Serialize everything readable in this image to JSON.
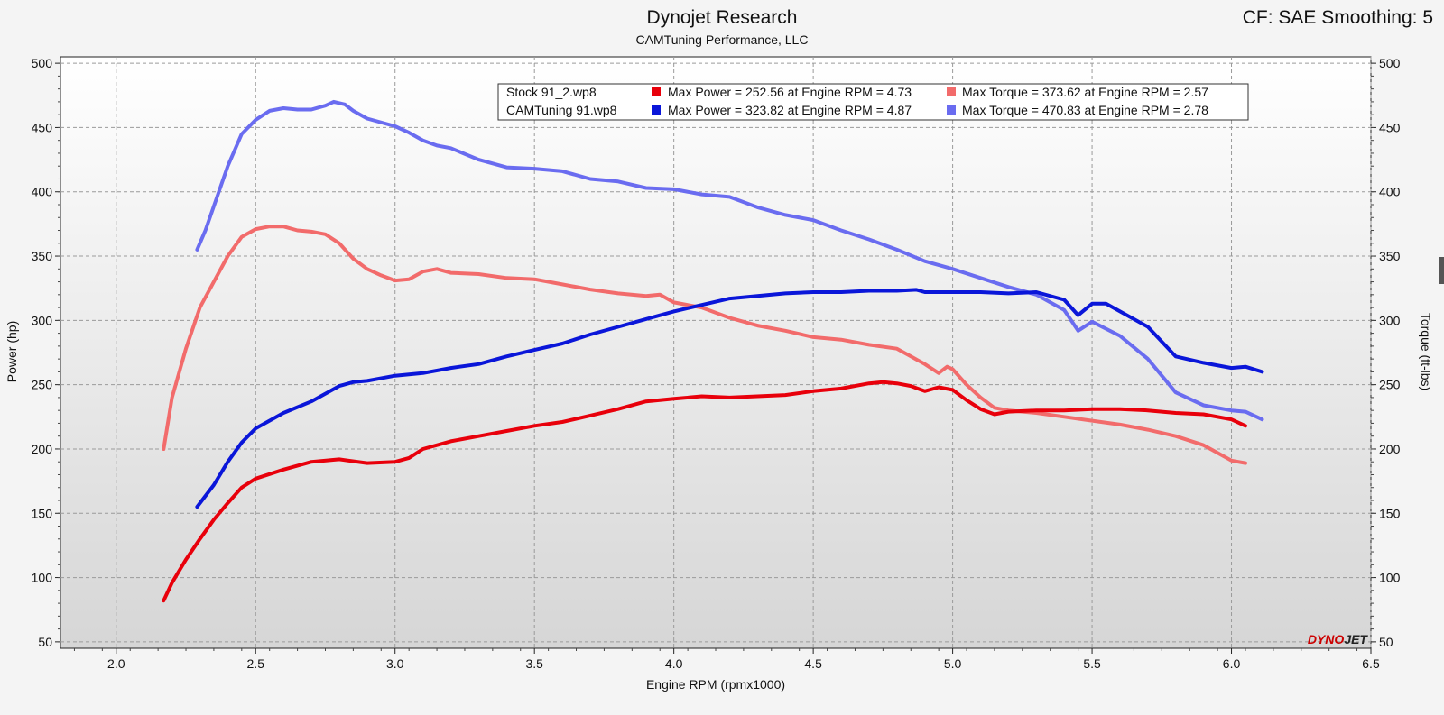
{
  "header": {
    "title": "Dynojet Research",
    "subtitle": "CAMTuning Performance, LLC",
    "corner_info": "CF: SAE Smoothing: 5"
  },
  "logo": {
    "text_left": "DYNO",
    "text_right": "JET"
  },
  "legend": {
    "runs": [
      {
        "file": "Stock 91_2.wp8",
        "power": "Max Power = 252.56 at Engine RPM = 4.73",
        "torque": "Max Torque = 373.62 at Engine RPM = 2.57",
        "power_color": "#e8000b",
        "torque_color": "#f26b6b"
      },
      {
        "file": "CAMTuning 91.wp8",
        "power": "Max Power = 323.82 at Engine RPM = 4.87",
        "torque": "Max Torque = 470.83 at Engine RPM = 2.78",
        "power_color": "#0a16d9",
        "torque_color": "#6a6cf0"
      }
    ]
  },
  "chart_data": {
    "type": "line",
    "title": "Dynojet Research",
    "subtitle": "CAMTuning Performance, LLC",
    "xlabel": "Engine RPM (rpmx1000)",
    "ylabel": "Power (hp)",
    "y2label": "Torque (ft-lbs)",
    "xlim": [
      1.8,
      6.5
    ],
    "ylim": [
      45,
      505
    ],
    "y2lim": [
      45,
      505
    ],
    "xticks": [
      "2.0",
      "2.5",
      "3.0",
      "3.5",
      "4.0",
      "4.5",
      "5.0",
      "5.5",
      "6.0",
      "6.5"
    ],
    "yticks": [
      "50",
      "100",
      "150",
      "200",
      "250",
      "300",
      "350",
      "400",
      "450",
      "500"
    ],
    "grid": true,
    "legend_position": "top-center",
    "series": [
      {
        "name": "Stock 91_2.wp8 Torque",
        "color": "#f26b6b",
        "points": [
          [
            2.17,
            200
          ],
          [
            2.2,
            240
          ],
          [
            2.25,
            278
          ],
          [
            2.3,
            310
          ],
          [
            2.35,
            330
          ],
          [
            2.4,
            350
          ],
          [
            2.45,
            365
          ],
          [
            2.5,
            371
          ],
          [
            2.55,
            373
          ],
          [
            2.6,
            373
          ],
          [
            2.65,
            370
          ],
          [
            2.7,
            369
          ],
          [
            2.75,
            367
          ],
          [
            2.8,
            360
          ],
          [
            2.85,
            348
          ],
          [
            2.9,
            340
          ],
          [
            2.95,
            335
          ],
          [
            3.0,
            331
          ],
          [
            3.05,
            332
          ],
          [
            3.1,
            338
          ],
          [
            3.15,
            340
          ],
          [
            3.2,
            337
          ],
          [
            3.3,
            336
          ],
          [
            3.4,
            333
          ],
          [
            3.5,
            332
          ],
          [
            3.6,
            328
          ],
          [
            3.7,
            324
          ],
          [
            3.8,
            321
          ],
          [
            3.9,
            319
          ],
          [
            3.95,
            320
          ],
          [
            4.0,
            314
          ],
          [
            4.1,
            310
          ],
          [
            4.2,
            302
          ],
          [
            4.3,
            296
          ],
          [
            4.4,
            292
          ],
          [
            4.5,
            287
          ],
          [
            4.6,
            285
          ],
          [
            4.7,
            281
          ],
          [
            4.8,
            278
          ],
          [
            4.85,
            272
          ],
          [
            4.9,
            266
          ],
          [
            4.95,
            259
          ],
          [
            4.98,
            264
          ],
          [
            5.0,
            262
          ],
          [
            5.05,
            250
          ],
          [
            5.1,
            240
          ],
          [
            5.15,
            232
          ],
          [
            5.2,
            230
          ],
          [
            5.3,
            228
          ],
          [
            5.4,
            225
          ],
          [
            5.5,
            222
          ],
          [
            5.6,
            219
          ],
          [
            5.7,
            215
          ],
          [
            5.8,
            210
          ],
          [
            5.9,
            203
          ],
          [
            5.95,
            197
          ],
          [
            6.0,
            191
          ],
          [
            6.05,
            189
          ]
        ]
      },
      {
        "name": "CAMTuning 91.wp8 Torque",
        "color": "#6a6cf0",
        "points": [
          [
            2.29,
            355
          ],
          [
            2.32,
            370
          ],
          [
            2.36,
            395
          ],
          [
            2.4,
            420
          ],
          [
            2.45,
            445
          ],
          [
            2.5,
            456
          ],
          [
            2.55,
            463
          ],
          [
            2.6,
            465
          ],
          [
            2.65,
            464
          ],
          [
            2.7,
            464
          ],
          [
            2.75,
            467
          ],
          [
            2.78,
            470
          ],
          [
            2.82,
            468
          ],
          [
            2.85,
            463
          ],
          [
            2.9,
            457
          ],
          [
            3.0,
            451
          ],
          [
            3.05,
            446
          ],
          [
            3.1,
            440
          ],
          [
            3.15,
            436
          ],
          [
            3.2,
            434
          ],
          [
            3.3,
            425
          ],
          [
            3.4,
            419
          ],
          [
            3.5,
            418
          ],
          [
            3.6,
            416
          ],
          [
            3.7,
            410
          ],
          [
            3.8,
            408
          ],
          [
            3.9,
            403
          ],
          [
            4.0,
            402
          ],
          [
            4.1,
            398
          ],
          [
            4.2,
            396
          ],
          [
            4.3,
            388
          ],
          [
            4.4,
            382
          ],
          [
            4.5,
            378
          ],
          [
            4.6,
            370
          ],
          [
            4.7,
            363
          ],
          [
            4.8,
            355
          ],
          [
            4.9,
            346
          ],
          [
            5.0,
            340
          ],
          [
            5.1,
            333
          ],
          [
            5.2,
            326
          ],
          [
            5.3,
            320
          ],
          [
            5.4,
            308
          ],
          [
            5.45,
            292
          ],
          [
            5.5,
            299
          ],
          [
            5.6,
            288
          ],
          [
            5.7,
            270
          ],
          [
            5.8,
            244
          ],
          [
            5.9,
            234
          ],
          [
            6.0,
            230
          ],
          [
            6.05,
            229
          ],
          [
            6.11,
            223
          ]
        ]
      },
      {
        "name": "Stock 91_2.wp8 Power",
        "color": "#e8000b",
        "points": [
          [
            2.17,
            82
          ],
          [
            2.2,
            96
          ],
          [
            2.25,
            114
          ],
          [
            2.3,
            130
          ],
          [
            2.35,
            145
          ],
          [
            2.4,
            158
          ],
          [
            2.45,
            170
          ],
          [
            2.5,
            177
          ],
          [
            2.6,
            184
          ],
          [
            2.7,
            190
          ],
          [
            2.8,
            192
          ],
          [
            2.9,
            189
          ],
          [
            3.0,
            190
          ],
          [
            3.05,
            193
          ],
          [
            3.1,
            200
          ],
          [
            3.2,
            206
          ],
          [
            3.3,
            210
          ],
          [
            3.4,
            214
          ],
          [
            3.5,
            218
          ],
          [
            3.6,
            221
          ],
          [
            3.7,
            226
          ],
          [
            3.8,
            231
          ],
          [
            3.9,
            237
          ],
          [
            4.0,
            239
          ],
          [
            4.1,
            241
          ],
          [
            4.2,
            240
          ],
          [
            4.3,
            241
          ],
          [
            4.4,
            242
          ],
          [
            4.5,
            245
          ],
          [
            4.6,
            247
          ],
          [
            4.7,
            251
          ],
          [
            4.75,
            252
          ],
          [
            4.8,
            251
          ],
          [
            4.85,
            249
          ],
          [
            4.9,
            245
          ],
          [
            4.95,
            248
          ],
          [
            5.0,
            246
          ],
          [
            5.05,
            238
          ],
          [
            5.1,
            231
          ],
          [
            5.15,
            227
          ],
          [
            5.2,
            229
          ],
          [
            5.3,
            230
          ],
          [
            5.4,
            230
          ],
          [
            5.5,
            231
          ],
          [
            5.6,
            231
          ],
          [
            5.7,
            230
          ],
          [
            5.8,
            228
          ],
          [
            5.9,
            227
          ],
          [
            6.0,
            223
          ],
          [
            6.05,
            218
          ]
        ]
      },
      {
        "name": "CAMTuning 91.wp8 Power",
        "color": "#0a16d9",
        "points": [
          [
            2.29,
            155
          ],
          [
            2.35,
            172
          ],
          [
            2.4,
            190
          ],
          [
            2.45,
            205
          ],
          [
            2.5,
            216
          ],
          [
            2.6,
            228
          ],
          [
            2.7,
            237
          ],
          [
            2.8,
            249
          ],
          [
            2.85,
            252
          ],
          [
            2.9,
            253
          ],
          [
            3.0,
            257
          ],
          [
            3.1,
            259
          ],
          [
            3.2,
            263
          ],
          [
            3.3,
            266
          ],
          [
            3.4,
            272
          ],
          [
            3.5,
            277
          ],
          [
            3.6,
            282
          ],
          [
            3.7,
            289
          ],
          [
            3.8,
            295
          ],
          [
            3.9,
            301
          ],
          [
            4.0,
            307
          ],
          [
            4.1,
            312
          ],
          [
            4.2,
            317
          ],
          [
            4.3,
            319
          ],
          [
            4.4,
            321
          ],
          [
            4.5,
            322
          ],
          [
            4.6,
            322
          ],
          [
            4.7,
            323
          ],
          [
            4.8,
            323
          ],
          [
            4.87,
            323.8
          ],
          [
            4.9,
            322
          ],
          [
            5.0,
            322
          ],
          [
            5.1,
            322
          ],
          [
            5.2,
            321
          ],
          [
            5.3,
            322
          ],
          [
            5.4,
            316
          ],
          [
            5.45,
            304
          ],
          [
            5.5,
            313
          ],
          [
            5.55,
            313
          ],
          [
            5.6,
            307
          ],
          [
            5.7,
            295
          ],
          [
            5.8,
            272
          ],
          [
            5.9,
            267
          ],
          [
            6.0,
            263
          ],
          [
            6.05,
            264
          ],
          [
            6.11,
            260
          ]
        ]
      }
    ]
  }
}
